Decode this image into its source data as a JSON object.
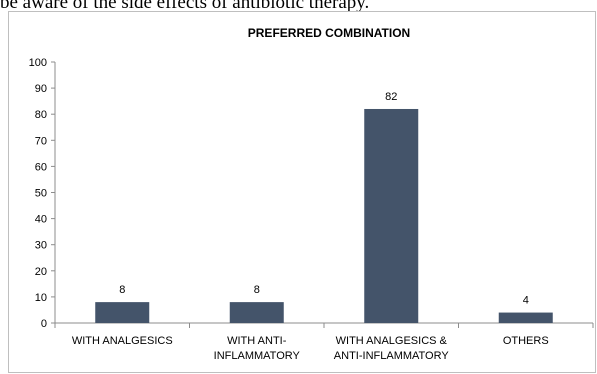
{
  "page": {
    "top_text": "be aware of the side effects of antibiotic therapy."
  },
  "chart_data": {
    "type": "bar",
    "title": "PREFERRED COMBINATION",
    "categories": [
      [
        "WITH ANALGESICS"
      ],
      [
        "WITH ANTI-",
        "INFLAMMATORY"
      ],
      [
        "WITH ANALGESICS &",
        "ANTI-INFLAMMATORY"
      ],
      [
        "OTHERS"
      ]
    ],
    "values": [
      8,
      8,
      82,
      4
    ],
    "data_labels": [
      "8",
      "8",
      "82",
      "4"
    ],
    "ylim": [
      0,
      100
    ],
    "yticks": [
      0,
      10,
      20,
      30,
      40,
      50,
      60,
      70,
      80,
      90,
      100
    ],
    "grid": false,
    "legend": "none",
    "colors": {
      "bar": "#44546a",
      "axis": "#8c8c8c",
      "text": "#000000"
    }
  }
}
